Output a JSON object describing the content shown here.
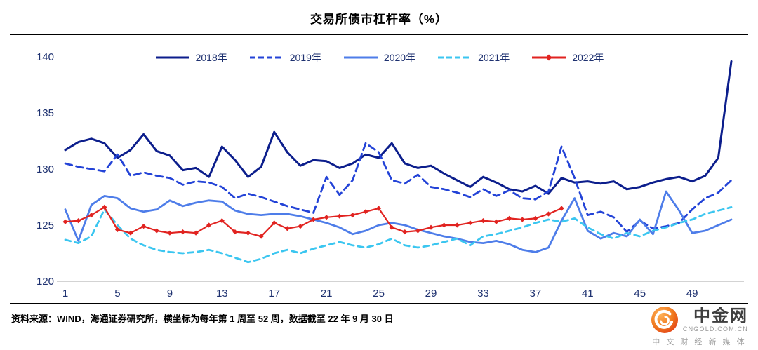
{
  "title": "交易所债市杠杆率（%）",
  "footer": {
    "source": "资料来源：WIND，海通证券研究所，横坐标为每年第 1 周至 52 周，数据截至 22 年 9 月 30 日"
  },
  "logo": {
    "name": "中金网",
    "domain": "CNGOLD.COM.CN",
    "tagline": "中 文 财 经 新 媒 体",
    "circle_color": "#e8401c"
  },
  "chart_data": {
    "type": "line",
    "title": "交易所债市杠杆率（%）",
    "xlabel": "",
    "ylabel": "",
    "xlim": [
      1,
      52
    ],
    "ylim": [
      120,
      140
    ],
    "y_ticks": [
      120,
      125,
      130,
      135,
      140
    ],
    "x_ticks": [
      1,
      5,
      9,
      13,
      17,
      21,
      25,
      29,
      33,
      37,
      41,
      45,
      49
    ],
    "grid": false,
    "legend_position": "top",
    "x": [
      1,
      2,
      3,
      4,
      5,
      6,
      7,
      8,
      9,
      10,
      11,
      12,
      13,
      14,
      15,
      16,
      17,
      18,
      19,
      20,
      21,
      22,
      23,
      24,
      25,
      26,
      27,
      28,
      29,
      30,
      31,
      32,
      33,
      34,
      35,
      36,
      37,
      38,
      39,
      40,
      41,
      42,
      43,
      44,
      45,
      46,
      47,
      48,
      49,
      50,
      51,
      52
    ],
    "series": [
      {
        "name": "2018年",
        "color": "#0c1e8c",
        "dash": "",
        "marker": "none",
        "width": 3,
        "values": [
          131.7,
          132.4,
          132.7,
          132.3,
          131.0,
          131.7,
          133.1,
          131.6,
          131.2,
          129.9,
          130.1,
          129.3,
          132.0,
          130.8,
          129.3,
          130.2,
          133.3,
          131.5,
          130.3,
          130.8,
          130.7,
          130.1,
          130.5,
          131.3,
          131.0,
          132.3,
          130.5,
          130.1,
          130.3,
          129.6,
          129.0,
          128.4,
          129.3,
          128.8,
          128.2,
          128.0,
          128.5,
          127.8,
          129.2,
          128.8,
          128.9,
          128.7,
          128.9,
          128.2,
          128.4,
          128.8,
          129.1,
          129.3,
          128.9,
          129.4,
          131.0,
          139.6
        ]
      },
      {
        "name": "2019年",
        "color": "#2343d7",
        "dash": "10 6",
        "marker": "none",
        "width": 2.8,
        "values": [
          130.5,
          130.2,
          130.0,
          129.8,
          131.3,
          129.4,
          129.7,
          129.4,
          129.2,
          128.6,
          128.9,
          128.8,
          128.4,
          127.4,
          127.8,
          127.5,
          127.1,
          126.7,
          126.4,
          126.1,
          129.3,
          127.7,
          129.0,
          132.3,
          131.5,
          129.0,
          128.7,
          129.5,
          128.4,
          128.2,
          127.9,
          127.5,
          128.2,
          127.6,
          128.1,
          127.4,
          127.3,
          128.0,
          132.0,
          129.2,
          125.9,
          126.2,
          125.7,
          124.4,
          125.4,
          124.7,
          124.9,
          125.2,
          126.4,
          127.4,
          127.9,
          129.0
        ]
      },
      {
        "name": "2020年",
        "color": "#4e7de9",
        "dash": "",
        "marker": "none",
        "width": 2.8,
        "values": [
          126.4,
          123.6,
          126.8,
          127.6,
          127.4,
          126.5,
          126.2,
          126.4,
          127.2,
          126.7,
          127.0,
          127.2,
          127.1,
          126.3,
          126.0,
          125.9,
          126.0,
          126.0,
          125.8,
          125.5,
          125.2,
          124.8,
          124.2,
          124.5,
          125.0,
          125.2,
          125.0,
          124.6,
          124.3,
          124.0,
          123.8,
          123.5,
          123.4,
          123.6,
          123.3,
          122.8,
          122.6,
          123.0,
          125.4,
          127.4,
          124.5,
          123.8,
          124.3,
          124.0,
          125.5,
          124.2,
          128.0,
          126.3,
          124.3,
          124.5,
          125.0,
          125.5
        ]
      },
      {
        "name": "2021年",
        "color": "#3bc6f0",
        "dash": "8 6",
        "marker": "none",
        "width": 2.8,
        "values": [
          123.7,
          123.4,
          124.0,
          126.4,
          125.0,
          123.8,
          123.2,
          122.8,
          122.6,
          122.5,
          122.6,
          122.8,
          122.5,
          122.1,
          121.7,
          122.0,
          122.5,
          122.8,
          122.5,
          122.9,
          123.2,
          123.5,
          123.2,
          123.0,
          123.3,
          123.8,
          123.2,
          123.0,
          123.2,
          123.5,
          123.8,
          123.2,
          124.0,
          124.2,
          124.5,
          124.8,
          125.2,
          125.5,
          125.3,
          125.6,
          124.8,
          124.2,
          123.8,
          124.3,
          124.0,
          124.5,
          124.8,
          125.2,
          125.5,
          126.0,
          126.3,
          126.6
        ]
      },
      {
        "name": "2022年",
        "color": "#e12320",
        "dash": "",
        "marker": "diamond",
        "width": 2.2,
        "values": [
          125.3,
          125.4,
          125.9,
          126.6,
          124.6,
          124.3,
          124.9,
          124.5,
          124.3,
          124.4,
          124.3,
          125.0,
          125.4,
          124.4,
          124.3,
          124.0,
          125.2,
          124.7,
          124.9,
          125.5,
          125.7,
          125.8,
          125.9,
          126.2,
          126.5,
          124.8,
          124.4,
          124.5,
          124.8,
          125.0,
          125.0,
          125.2,
          125.4,
          125.3,
          125.6,
          125.5,
          125.6,
          126.0,
          126.5,
          null,
          null,
          null,
          null,
          null,
          null,
          null,
          null,
          null,
          null,
          null,
          null,
          null
        ]
      }
    ]
  }
}
